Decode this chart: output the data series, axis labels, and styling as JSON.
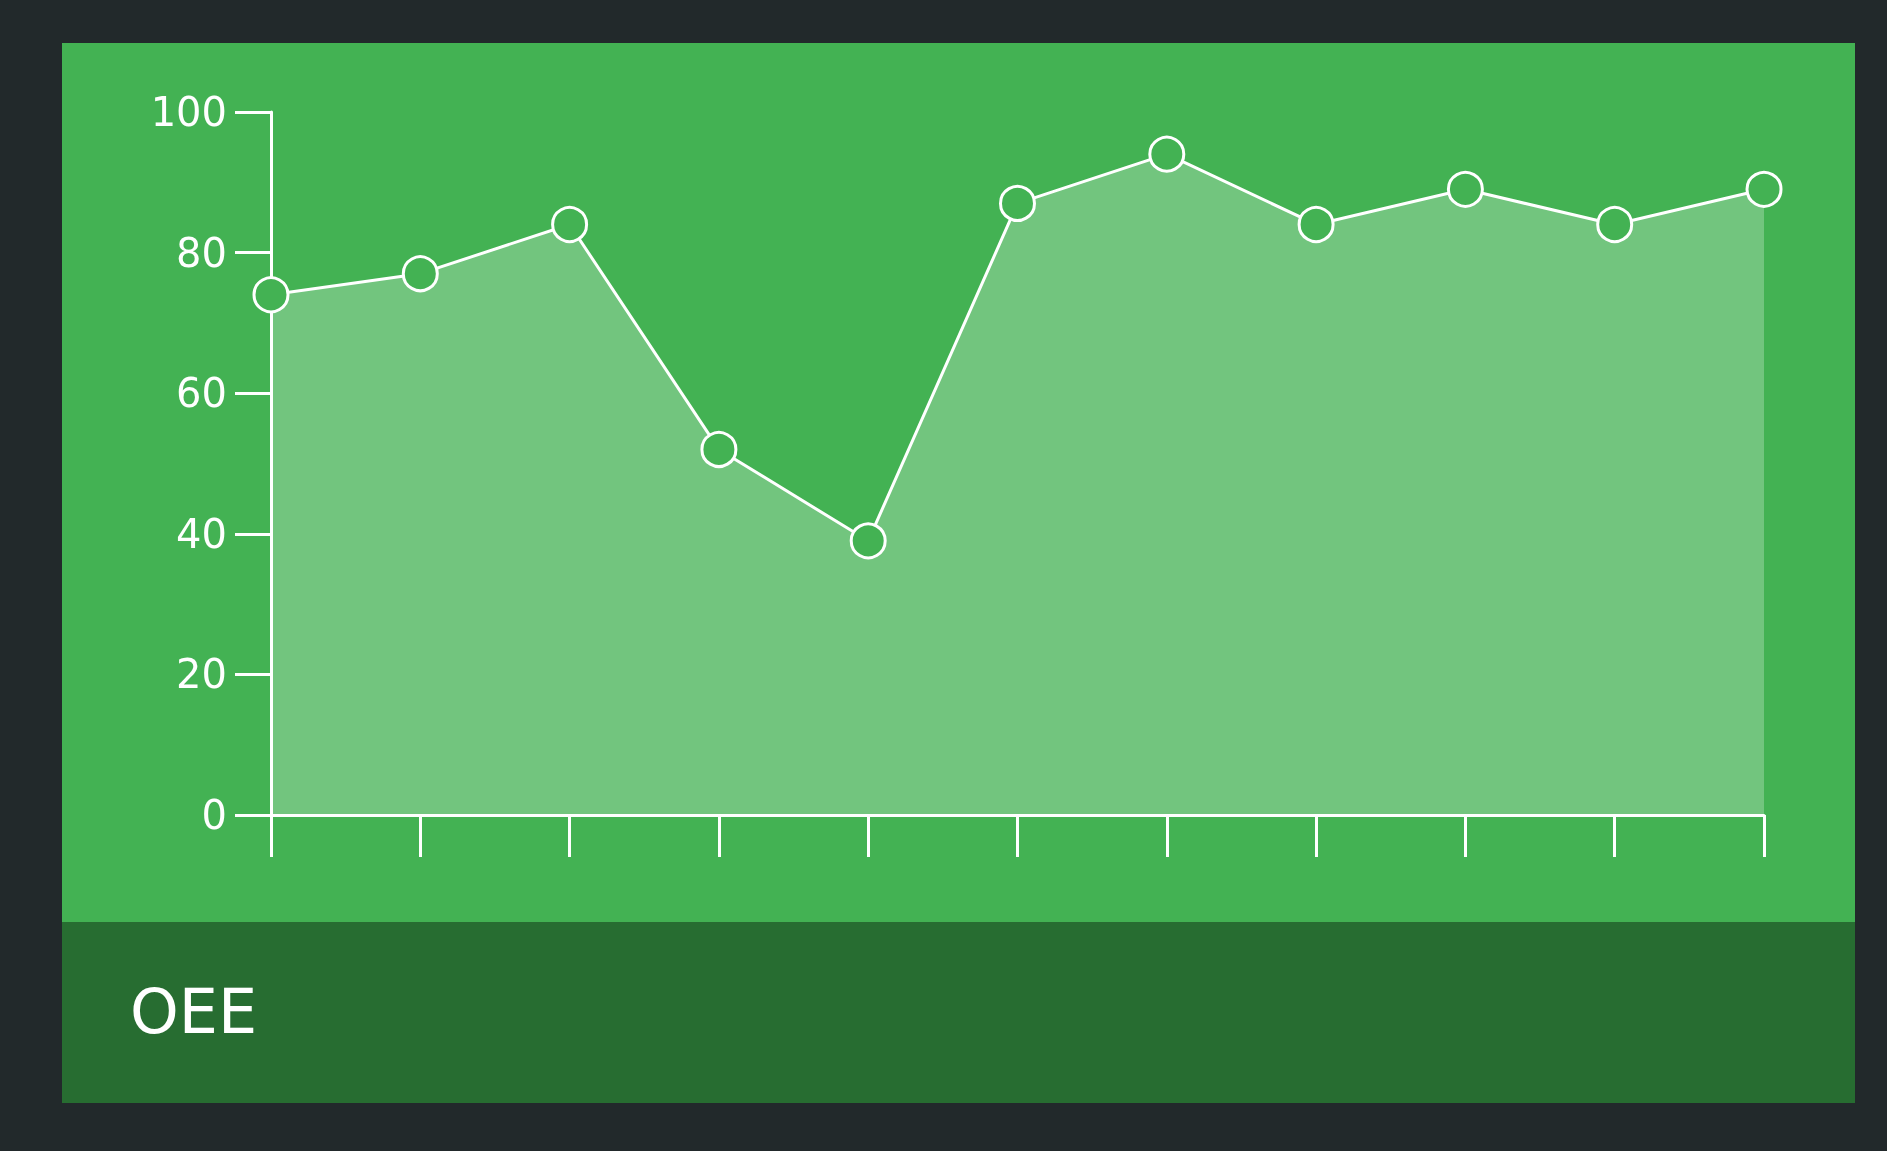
{
  "chart_data": {
    "type": "area",
    "title": "OEE",
    "categories": [
      null,
      null,
      null,
      null,
      null,
      null,
      null,
      null,
      null,
      null,
      null
    ],
    "values": [
      74,
      77,
      84,
      52,
      39,
      87,
      94,
      84,
      89,
      84,
      89
    ],
    "color": "#ffffff",
    "ylim": [
      0,
      100
    ],
    "yticks": [
      0,
      20,
      40,
      60,
      80,
      100
    ],
    "grid": false,
    "tick_labels": "y",
    "marker": "circle",
    "line_style": "solid"
  }
}
